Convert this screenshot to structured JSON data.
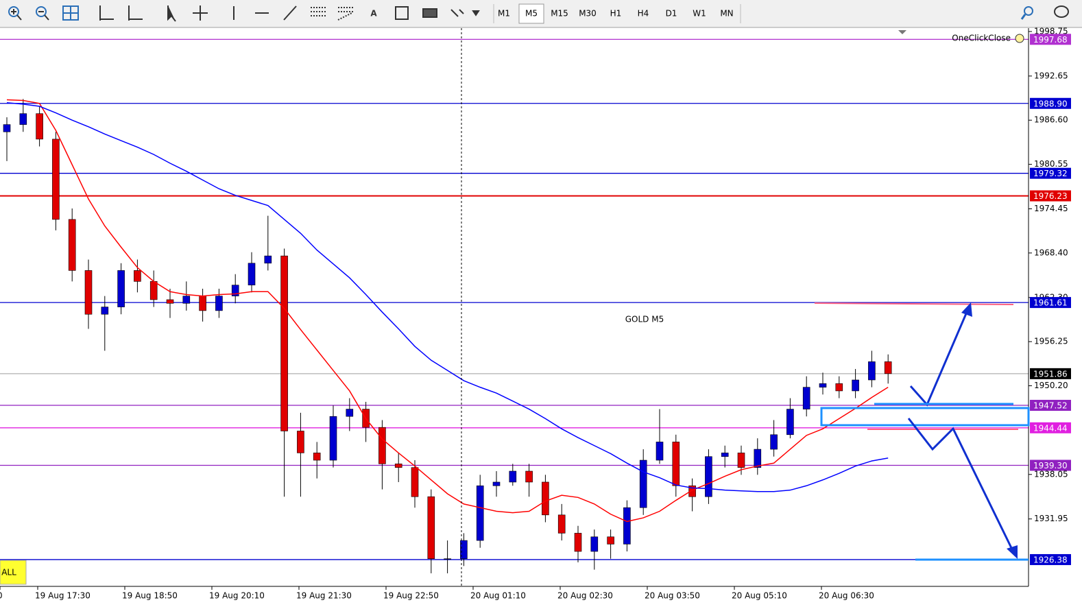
{
  "toolbar": {
    "timeframes": [
      "M1",
      "M5",
      "M15",
      "M30",
      "H1",
      "H4",
      "D1",
      "W1",
      "MN"
    ],
    "active": 1
  },
  "chart_data": {
    "type": "candlestick",
    "title": "GOLD M5",
    "expert": "OneClickClose",
    "button": "ALL",
    "ylim": [
      1922.71,
      1999.31
    ],
    "yticks": [
      1998.75,
      1992.65,
      {
        "value": 1986.6,
        "label": "1986.60"
      },
      1980.55,
      1974.45,
      {
        "value": 1968.4,
        "label": "1968.40"
      },
      {
        "value": 1962.3,
        "label": "1962.30"
      },
      1956.25,
      {
        "value": 1950.2,
        "label": "1950.20"
      },
      1938.05,
      1931.95
    ],
    "x_labels": [
      "0",
      "19 Aug 17:30",
      "19 Aug 18:50",
      "19 Aug 20:10",
      "19 Aug 21:30",
      "19 Aug 22:50",
      "20 Aug 01:10",
      "20 Aug 02:30",
      "20 Aug 03:50",
      "20 Aug 05:10",
      "20 Aug 06:30"
    ],
    "up_color": "#0000d0",
    "down_color": "#e00000",
    "open": [
      1985.0,
      1986.0,
      1987.5,
      1984.0,
      1973.0,
      1966.0,
      1960.0,
      1961.0,
      1966.0,
      1964.5,
      1962.0,
      1961.5,
      1962.5,
      1960.5,
      1962.5,
      1964.0,
      1967.0,
      1968.0,
      1944.0,
      1941.0,
      1940.0,
      1946.0,
      1947.0,
      1944.5,
      1939.5,
      1939.0,
      1935.0,
      1926.5,
      1926.5,
      1929.0,
      1936.5,
      1937.0,
      1938.5,
      1937.0,
      1932.5,
      1930.0,
      1927.5,
      1929.5,
      1928.5,
      1933.5,
      1940.0,
      1942.5,
      1936.5,
      1935.0,
      1940.5,
      1941.0,
      1939.0,
      1941.5,
      1943.5,
      1947.0,
      1950.0,
      1950.5,
      1949.5,
      1951.0,
      1953.5
    ],
    "high": [
      1987.0,
      1989.5,
      1988.5,
      1985.0,
      1974.5,
      1967.5,
      1962.5,
      1967.0,
      1967.5,
      1966.0,
      1963.5,
      1964.5,
      1963.5,
      1963.5,
      1965.5,
      1968.5,
      1973.5,
      1969.0,
      1946.5,
      1942.5,
      1947.5,
      1948.5,
      1948.0,
      1945.5,
      1941.0,
      1940.0,
      1936.0,
      1929.0,
      1930.0,
      1938.0,
      1938.5,
      1939.5,
      1939.5,
      1938.0,
      1934.0,
      1931.0,
      1930.5,
      1930.5,
      1934.5,
      1941.5,
      1947.0,
      1943.5,
      1937.5,
      1941.5,
      1942.0,
      1942.0,
      1943.0,
      1945.5,
      1948.5,
      1951.5,
      1952.0,
      1951.5,
      1952.5,
      1955.0,
      1954.5
    ],
    "low": [
      1981.0,
      1985.0,
      1983.0,
      1971.5,
      1964.5,
      1958.0,
      1955.0,
      1960.0,
      1963.0,
      1961.0,
      1959.5,
      1960.5,
      1959.0,
      1959.5,
      1961.5,
      1963.0,
      1966.0,
      1935.0,
      1935.0,
      1937.5,
      1939.0,
      1944.0,
      1942.5,
      1936.0,
      1937.0,
      1933.5,
      1924.5,
      1924.5,
      1925.5,
      1928.0,
      1935.0,
      1936.5,
      1935.0,
      1931.5,
      1929.0,
      1926.0,
      1925.0,
      1926.5,
      1927.5,
      1932.5,
      1939.5,
      1935.0,
      1933.0,
      1934.0,
      1939.0,
      1938.0,
      1938.0,
      1940.5,
      1943.0,
      1946.0,
      1949.0,
      1948.5,
      1948.5,
      1950.0,
      1950.5
    ],
    "close": [
      1986.0,
      1987.5,
      1984.0,
      1973.0,
      1966.0,
      1960.0,
      1961.0,
      1966.0,
      1964.5,
      1962.0,
      1961.5,
      1962.5,
      1960.5,
      1962.5,
      1964.0,
      1967.0,
      1968.0,
      1944.0,
      1941.0,
      1940.0,
      1946.0,
      1947.0,
      1944.5,
      1939.5,
      1939.0,
      1935.0,
      1926.5,
      1926.5,
      1929.0,
      1936.5,
      1937.0,
      1938.5,
      1937.0,
      1932.5,
      1930.0,
      1927.5,
      1929.5,
      1928.5,
      1933.5,
      1940.0,
      1942.5,
      1936.5,
      1935.0,
      1940.5,
      1941.0,
      1939.0,
      1941.5,
      1943.5,
      1947.0,
      1950.0,
      1950.5,
      1949.5,
      1951.0,
      1953.5,
      1951.86
    ],
    "moving_averages": [
      {
        "color": "#ff0000",
        "values": [
          1989.4,
          1989.3,
          1988.9,
          1985.2,
          1980.5,
          1975.8,
          1972.1,
          1969.2,
          1966.4,
          1964.5,
          1963.1,
          1962.7,
          1962.5,
          1962.7,
          1962.8,
          1963.1,
          1963.1,
          1960.8,
          1957.9,
          1955.1,
          1952.3,
          1949.5,
          1945.7,
          1942.9,
          1941.0,
          1939.2,
          1937.3,
          1935.4,
          1934.0,
          1933.5,
          1933.0,
          1932.8,
          1933.0,
          1934.4,
          1935.2,
          1934.9,
          1934.0,
          1932.6,
          1931.6,
          1932.1,
          1933.0,
          1934.5,
          1935.9,
          1936.8,
          1937.8,
          1938.7,
          1939.2,
          1939.6,
          1941.5,
          1943.4,
          1944.3,
          1945.7,
          1947.1,
          1948.6,
          1950.0
        ]
      },
      {
        "color": "#0000ff",
        "values": [
          1989.0,
          1988.8,
          1988.5,
          1987.6,
          1986.6,
          1985.7,
          1984.7,
          1983.8,
          1982.9,
          1981.9,
          1980.7,
          1979.6,
          1978.4,
          1977.2,
          1976.3,
          1975.6,
          1974.9,
          1973.0,
          1971.1,
          1968.8,
          1966.9,
          1965.0,
          1962.7,
          1960.3,
          1958.0,
          1955.6,
          1953.7,
          1952.3,
          1950.9,
          1950.0,
          1949.2,
          1948.1,
          1947.0,
          1945.7,
          1944.3,
          1943.1,
          1942.0,
          1940.9,
          1939.6,
          1938.4,
          1937.6,
          1936.6,
          1936.2,
          1936.1,
          1935.9,
          1935.8,
          1935.7,
          1935.7,
          1935.9,
          1936.5,
          1937.3,
          1938.2,
          1939.2,
          1939.9,
          1940.3
        ]
      }
    ],
    "levels": [
      {
        "value": 1997.68,
        "label": "1997.68",
        "color": "#b030d0"
      },
      {
        "value": 1988.9,
        "label": "1988.90",
        "color": "#0000d0"
      },
      {
        "value": 1979.32,
        "label": "1979.32",
        "color": "#0000d0"
      },
      {
        "value": 1976.23,
        "label": "1976.23",
        "color": "#e00000"
      },
      {
        "value": 1961.61,
        "label": "1961.61",
        "color": "#0000d0"
      },
      {
        "value": 1951.86,
        "label": "1951.86",
        "color": "#000000"
      },
      {
        "value": 1947.52,
        "label": "1947.52",
        "color": "#9020c0"
      },
      {
        "value": 1944.44,
        "label": "1944.44",
        "color": "#e020e0"
      },
      {
        "value": 1939.3,
        "label": "1939.30",
        "color": "#9020c0"
      },
      {
        "value": 1926.38,
        "label": "1926.38",
        "color": "#0000d0"
      }
    ]
  }
}
